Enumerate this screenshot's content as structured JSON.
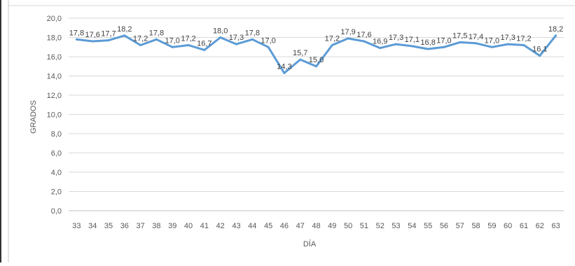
{
  "chart_data": {
    "type": "line",
    "title": "",
    "xlabel": "DÍA",
    "ylabel": "GRADOS",
    "ylim": [
      0,
      20
    ],
    "y_tick_labels": [
      "0,0",
      "2,0",
      "4,0",
      "6,0",
      "8,0",
      "10,0",
      "12,0",
      "14,0",
      "16,0",
      "18,0",
      "20,0"
    ],
    "grid": true,
    "legend": "none",
    "categories": [
      "33",
      "34",
      "35",
      "36",
      "37",
      "38",
      "39",
      "40",
      "41",
      "42",
      "43",
      "44",
      "45",
      "46",
      "47",
      "48",
      "49",
      "50",
      "51",
      "52",
      "53",
      "54",
      "55",
      "56",
      "57",
      "58",
      "59",
      "60",
      "61",
      "62",
      "63"
    ],
    "series": [
      {
        "name": "",
        "color": "#5b9bd5",
        "values": [
          17.8,
          17.6,
          17.7,
          18.2,
          17.2,
          17.8,
          17.0,
          17.2,
          16.7,
          18.0,
          17.3,
          17.8,
          17.0,
          14.3,
          15.7,
          15.0,
          17.2,
          17.9,
          17.6,
          16.9,
          17.3,
          17.1,
          16.8,
          17.0,
          17.5,
          17.4,
          17.0,
          17.3,
          17.2,
          16.1,
          18.2
        ],
        "data_labels": [
          "17,8",
          "17,6",
          "17,7",
          "18,2",
          "17,2",
          "17,8",
          "17,0",
          "17,2",
          "16,7",
          "18,0",
          "17,3",
          "17,8",
          "17,0",
          "14,3",
          "15,7",
          "15,0",
          "17,2",
          "17,9",
          "17,6",
          "16,9",
          "17,3",
          "17,1",
          "16,8",
          "17,0",
          "17,5",
          "17,4",
          "17,0",
          "17,3",
          "17,2",
          "16,1",
          "18,2"
        ]
      }
    ]
  }
}
